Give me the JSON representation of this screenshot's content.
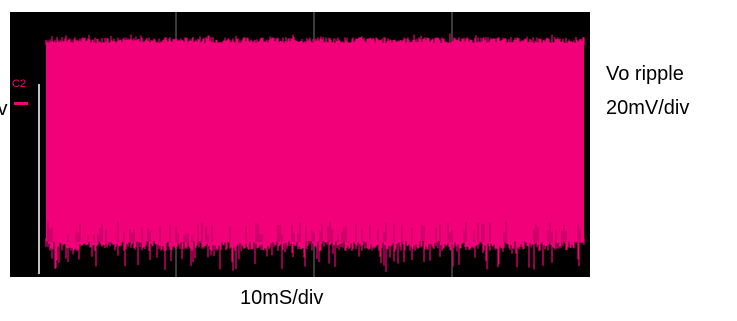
{
  "chart_data": {
    "type": "line",
    "title": "",
    "series": [
      {
        "channel_label": "C2",
        "name": "",
        "color": "#f2007a",
        "values": []
      }
    ],
    "xlabel": "10mS/div",
    "ylabel_lines": [
      "Vo ripple",
      "20mV/div"
    ],
    "left_fragment": "iv",
    "grid": true,
    "vertical_divisions": 4,
    "background": "#000000"
  }
}
